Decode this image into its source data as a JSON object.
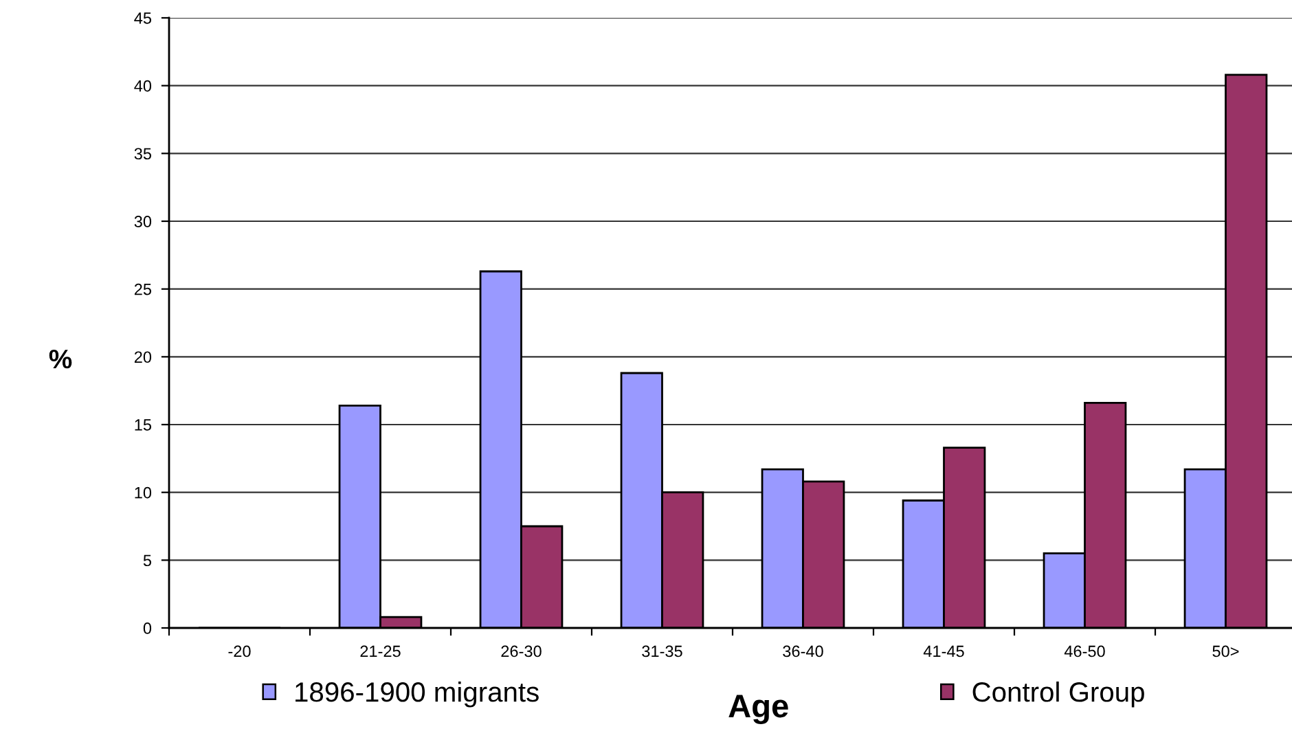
{
  "chart_data": {
    "type": "bar",
    "xlabel": "Age",
    "ylabel": "%",
    "categories": [
      "-20",
      "21-25",
      "26-30",
      "31-35",
      "36-40",
      "41-45",
      "46-50",
      "50>"
    ],
    "series": [
      {
        "name": "1896-1900 migrants",
        "color": "#9999ff",
        "values": [
          0,
          16.4,
          26.3,
          18.8,
          11.7,
          9.4,
          5.5,
          11.7
        ]
      },
      {
        "name": "Control Group",
        "color": "#993366",
        "values": [
          0,
          0.8,
          7.5,
          10.0,
          10.8,
          13.3,
          16.6,
          40.8
        ]
      }
    ],
    "ylim": [
      0,
      45
    ],
    "yticks": [
      0,
      5,
      10,
      15,
      20,
      25,
      30,
      35,
      40,
      45
    ],
    "grid": "y",
    "legend": "bottom"
  }
}
